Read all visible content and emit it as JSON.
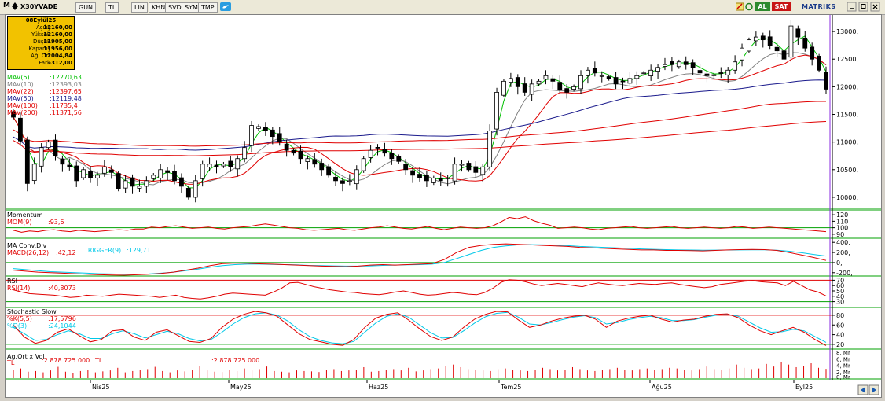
{
  "toolbar": {
    "symbol": "X30YVADE",
    "period": "GUN",
    "currency": "TL",
    "scale": "LIN",
    "buttons": [
      "KHN",
      "SVD",
      "SYM",
      "TMP"
    ],
    "buy_label": "AL",
    "sell_label": "SAT",
    "brand": "MATRIKS"
  },
  "infobox": {
    "date": "08Eylül25",
    "rows": [
      {
        "label": "Açılış",
        "value": "12160,00"
      },
      {
        "label": "Yüksek",
        "value": "12160,00"
      },
      {
        "label": "Düşük",
        "value": "11905,00"
      },
      {
        "label": "Kapanış",
        "value": "11956,00"
      },
      {
        "label": "Ağ. Ort",
        "value": "12004,84"
      },
      {
        "label": "Fark",
        "value": "-312,00"
      }
    ]
  },
  "colors": {
    "candle_up": "#ffffff",
    "candle_down": "#000000",
    "mav5": "#00c000",
    "mav10": "#808080",
    "mav22": "#e00000",
    "mav50": "#1a1a8c",
    "mav100": "#e00000",
    "mav200": "#e00000",
    "momentum": "#e00000",
    "macd": "#e00000",
    "trigger": "#00c8e8",
    "rsi": "#e00000",
    "stoch_k": "#e00000",
    "stoch_d": "#00c8e8",
    "volume": "#e00000",
    "level_line": "#00a000"
  },
  "chart_data": [
    {
      "type": "candlestick",
      "panel": "price",
      "x_labels": [
        "Nis25",
        "May25",
        "Haz25",
        "Tem25",
        "Ağu25",
        "Eyl25"
      ],
      "ylim": [
        9800,
        13300
      ],
      "y_ticks": [
        "13000,",
        "12500,",
        "12000,",
        "11500,",
        "11000,",
        "10500,",
        "10000,"
      ],
      "y_tick_values": [
        13000,
        12500,
        12000,
        11500,
        11000,
        10500,
        10000
      ],
      "legend": [
        {
          "name": "MAV(5)",
          "value": ":12270,63"
        },
        {
          "name": "MAV(10)",
          "value": ":12393,03"
        },
        {
          "name": "MAV(22)",
          "value": ":12397,65"
        },
        {
          "name": "MAV(50)",
          "value": ":12119,48"
        },
        {
          "name": "MAV(100)",
          "value": ":11735,4"
        },
        {
          "name": "MAV(200)",
          "value": ":11371,56"
        }
      ],
      "close_series": [
        11450,
        11020,
        10250,
        10600,
        10900,
        11000,
        10750,
        10600,
        10550,
        10300,
        10500,
        10350,
        10400,
        10550,
        10450,
        10150,
        10300,
        10200,
        10200,
        10300,
        10400,
        10500,
        10450,
        10300,
        10200,
        10000,
        10300,
        10600,
        10600,
        10550,
        10600,
        10550,
        10700,
        10900,
        11300,
        11280,
        11200,
        11100,
        11000,
        10850,
        10800,
        10700,
        10700,
        10600,
        10500,
        10400,
        10300,
        10250,
        10300,
        10500,
        10700,
        10850,
        10900,
        10800,
        10700,
        10650,
        10500,
        10400,
        10350,
        10300,
        10350,
        10300,
        10350,
        10600,
        10600,
        10500,
        10450,
        10550,
        11200,
        11900,
        12100,
        12150,
        12000,
        11900,
        12050,
        12100,
        12200,
        12100,
        11950,
        11900,
        12000,
        12200,
        12300,
        12250,
        12200,
        12150,
        12050,
        12100,
        12150,
        12200,
        12250,
        12300,
        12350,
        12400,
        12400,
        12450,
        12400,
        12350,
        12250,
        12200,
        12200,
        12250,
        12300,
        12450,
        12700,
        12850,
        12900,
        12850,
        12750,
        12650,
        12500,
        13100,
        12900,
        12700,
        12500,
        12300,
        11956
      ],
      "ma_values": {
        "MAV(5)": 12270.63,
        "MAV(10)": 12393.03,
        "MAV(22)": 12397.65,
        "MAV(50)": 12119.48,
        "MAV(100)": 11735.4,
        "MAV(200)": 11371.56
      }
    },
    {
      "type": "line",
      "panel": "momentum",
      "title": "Momentum",
      "series": [
        {
          "name": "MOM(9)",
          "value": ":93,6"
        }
      ],
      "y_ticks": [
        "120",
        "110",
        "100",
        "90"
      ],
      "ylim": [
        85,
        125
      ],
      "reference": 100,
      "values": [
        96,
        93,
        95,
        94,
        96,
        97,
        95,
        94,
        96,
        95,
        94,
        95,
        96,
        97,
        96,
        98,
        98,
        101,
        100,
        102,
        103,
        101,
        99,
        100,
        101,
        99,
        98,
        100,
        101,
        102,
        104,
        106,
        104,
        102,
        100,
        99,
        97,
        96,
        97,
        98,
        99,
        97,
        96,
        98,
        100,
        101,
        103,
        101,
        99,
        98,
        100,
        102,
        99,
        97,
        99,
        101,
        100,
        99,
        100,
        103,
        109,
        116,
        114,
        117,
        111,
        107,
        104,
        99,
        100,
        101,
        100,
        98,
        97,
        99,
        100,
        101,
        102,
        100,
        99,
        100,
        101,
        102,
        100,
        99,
        100,
        101,
        100,
        99,
        100,
        102,
        101,
        99,
        100,
        101,
        100,
        99,
        98,
        97,
        96,
        95,
        94
      ]
    },
    {
      "type": "line",
      "panel": "macd",
      "title": "MA Conv.Div",
      "series": [
        {
          "name": "MACD(26,12)",
          "value": ":42,12"
        },
        {
          "name": "TRIGGER(9)",
          "value": ":129,71"
        }
      ],
      "y_ticks": [
        "400,",
        "200,",
        "0,",
        "-200,"
      ],
      "ylim": [
        -250,
        450
      ],
      "macd": [
        -150,
        -170,
        -190,
        -200,
        -210,
        -220,
        -230,
        -240,
        -245,
        -250,
        -240,
        -230,
        -215,
        -190,
        -150,
        -110,
        -60,
        -20,
        -10,
        -15,
        -25,
        -30,
        -40,
        -50,
        -60,
        -70,
        -75,
        -80,
        -70,
        -50,
        -40,
        -50,
        -40,
        -30,
        -20,
        60,
        200,
        300,
        340,
        360,
        370,
        360,
        350,
        340,
        330,
        320,
        300,
        290,
        280,
        270,
        260,
        250,
        250,
        240,
        240,
        235,
        230,
        240,
        250,
        255,
        260,
        255,
        240,
        200,
        150,
        100,
        42
      ],
      "trigger": [
        -120,
        -140,
        -160,
        -180,
        -190,
        -200,
        -210,
        -220,
        -225,
        -230,
        -230,
        -225,
        -210,
        -190,
        -160,
        -130,
        -90,
        -60,
        -40,
        -30,
        -30,
        -35,
        -40,
        -45,
        -55,
        -60,
        -65,
        -70,
        -70,
        -65,
        -55,
        -50,
        -45,
        -40,
        -30,
        0,
        80,
        160,
        240,
        300,
        330,
        350,
        355,
        350,
        345,
        335,
        320,
        310,
        300,
        290,
        280,
        270,
        262,
        255,
        250,
        248,
        245,
        246,
        248,
        250,
        252,
        252,
        245,
        225,
        195,
        160,
        129.71
      ]
    },
    {
      "type": "line",
      "panel": "rsi",
      "title": "RSI",
      "series": [
        {
          "name": "RSI(14)",
          "value": ":40,8073"
        }
      ],
      "y_ticks": [
        "70",
        "60",
        "50",
        "40",
        "30"
      ],
      "ylim": [
        25,
        75
      ],
      "levels": [
        70,
        30
      ],
      "values": [
        52,
        48,
        45,
        44,
        43,
        42,
        40,
        38,
        39,
        42,
        41,
        40,
        42,
        44,
        43,
        42,
        41,
        40,
        38,
        40,
        42,
        38,
        36,
        35,
        37,
        40,
        44,
        46,
        45,
        44,
        43,
        42,
        48,
        55,
        65,
        66,
        62,
        58,
        55,
        52,
        50,
        48,
        47,
        45,
        44,
        43,
        45,
        48,
        50,
        47,
        44,
        42,
        43,
        45,
        47,
        46,
        44,
        43,
        47,
        55,
        66,
        71,
        70,
        67,
        63,
        60,
        62,
        64,
        62,
        60,
        58,
        62,
        65,
        63,
        61,
        60,
        62,
        64,
        63,
        62,
        64,
        65,
        62,
        60,
        58,
        56,
        58,
        62,
        64,
        66,
        68,
        69,
        67,
        66,
        65,
        60,
        68,
        60,
        52,
        48,
        40.8
      ]
    },
    {
      "type": "line",
      "panel": "stochastic",
      "title": "Stochastic Slow",
      "series": [
        {
          "name": "%K(5,5)",
          "value": ":17,5796"
        },
        {
          "name": "%D(3)",
          "value": ":24,1044"
        }
      ],
      "y_ticks": [
        "80",
        "60",
        "40",
        "20"
      ],
      "ylim": [
        15,
        88
      ],
      "levels": [
        80,
        20
      ],
      "k": [
        60,
        35,
        22,
        28,
        45,
        52,
        38,
        25,
        30,
        48,
        50,
        35,
        28,
        45,
        50,
        38,
        26,
        24,
        32,
        55,
        72,
        82,
        88,
        85,
        78,
        60,
        42,
        30,
        25,
        20,
        18,
        30,
        55,
        74,
        82,
        85,
        70,
        52,
        36,
        28,
        35,
        55,
        72,
        82,
        88,
        87,
        70,
        55,
        60,
        68,
        74,
        78,
        80,
        72,
        55,
        68,
        74,
        78,
        80,
        72,
        66,
        70,
        72,
        78,
        82,
        83,
        75,
        60,
        48,
        40,
        48,
        55,
        45,
        30,
        17.58
      ],
      "d": [
        55,
        42,
        28,
        30,
        40,
        48,
        42,
        32,
        32,
        42,
        48,
        42,
        33,
        40,
        47,
        42,
        32,
        27,
        30,
        45,
        62,
        75,
        83,
        85,
        80,
        68,
        50,
        36,
        28,
        23,
        21,
        26,
        45,
        64,
        78,
        83,
        76,
        60,
        44,
        33,
        34,
        48,
        64,
        77,
        84,
        86,
        76,
        62,
        60,
        65,
        71,
        76,
        79,
        75,
        62,
        65,
        71,
        75,
        78,
        75,
        69,
        69,
        71,
        76,
        80,
        82,
        78,
        66,
        54,
        45,
        46,
        51,
        48,
        36,
        24.1
      ]
    },
    {
      "type": "bar",
      "panel": "volume",
      "title": "Ag.Ort x Vol",
      "series": [
        {
          "name": "TL",
          "value": ":2.878.725.000",
          "unit": "TL"
        },
        {
          "name": "TL",
          "value": ":2.878.725.000",
          "unit": "TL"
        }
      ],
      "y_ticks": [
        "8, Mr",
        "6, Mr",
        "4, Mr",
        "2, Mr",
        "0, Mr"
      ],
      "ylim": [
        0,
        8
      ],
      "values": [
        2.5,
        3,
        2,
        2.2,
        1.8,
        2.4,
        3.5,
        2,
        1.5,
        2.2,
        2.6,
        1.8,
        2.1,
        2.4,
        3.2,
        1.8,
        2.2,
        2.5,
        2.8,
        3.5,
        2.2,
        1.8,
        2.4,
        2.1,
        2.6,
        3.8,
        2.4,
        2,
        1.9,
        2.5,
        2.2,
        3,
        2.4,
        2.8,
        3.6,
        2.2,
        2,
        1.8,
        2.4,
        2.2,
        2.1,
        1.9,
        2.5,
        2.8,
        2.2,
        2.4,
        2.6,
        3.4,
        2,
        2.2,
        2.6,
        2.8,
        2.4,
        3.2,
        2.1,
        2.4,
        2.8,
        3,
        3.8,
        4.2,
        3.4,
        2.8,
        2.6,
        2.4,
        2.2,
        2.8,
        3,
        2.6,
        2.4,
        2.2,
        2.6,
        3.2,
        2.8,
        2.4,
        2.6,
        3.4,
        2.8,
        2.4,
        2.2,
        2.6,
        2.8,
        3.2,
        2.6,
        2.4,
        2.8,
        3,
        2.6,
        2.8,
        3.2,
        3,
        2.6,
        2.4,
        2.8,
        3.6,
        2.8,
        2.6,
        3,
        4.2,
        3.2,
        2.8,
        3,
        4.4,
        3.6,
        5,
        4.2,
        3.4,
        3.8,
        4.6,
        3.2,
        2.88
      ]
    }
  ]
}
